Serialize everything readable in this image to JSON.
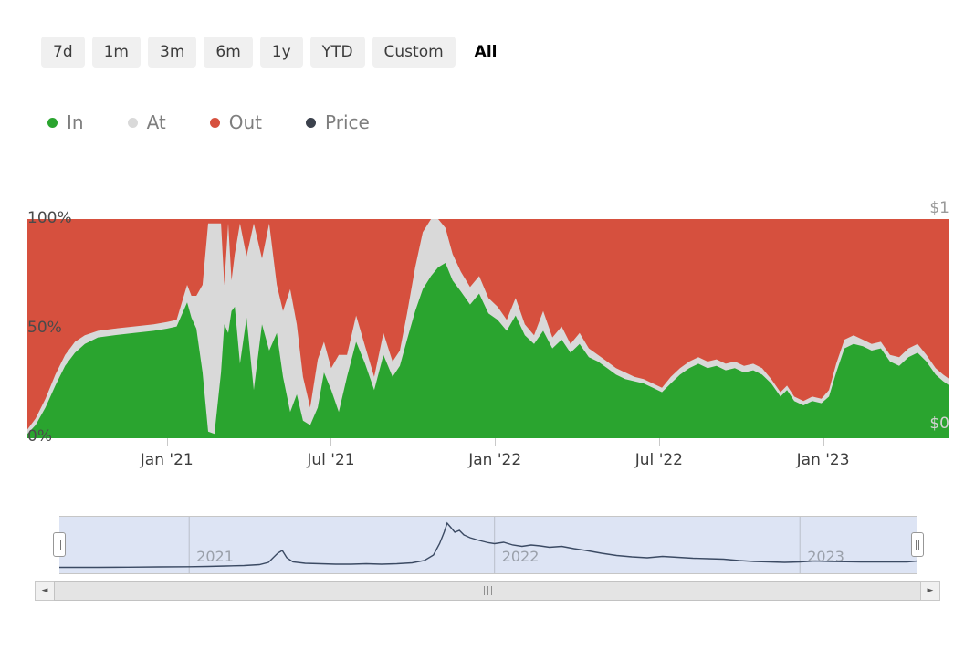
{
  "range_selector": {
    "buttons": [
      {
        "label": "7d",
        "active": false
      },
      {
        "label": "1m",
        "active": false
      },
      {
        "label": "3m",
        "active": false
      },
      {
        "label": "6m",
        "active": false
      },
      {
        "label": "1y",
        "active": false
      },
      {
        "label": "YTD",
        "active": false
      },
      {
        "label": "Custom",
        "active": false
      },
      {
        "label": "All",
        "active": true
      }
    ]
  },
  "legend": {
    "items": [
      {
        "label": "In",
        "color": "#2aa42f"
      },
      {
        "label": "At",
        "color": "#d9d9d9"
      },
      {
        "label": "Out",
        "color": "#d6503e"
      },
      {
        "label": "Price",
        "color": "#3b414c"
      }
    ]
  },
  "icons": {
    "scroll_left": "◄",
    "scroll_right": "►"
  },
  "chart_data": {
    "type": "area",
    "stacking": "percent",
    "x_unit": "decimal_year",
    "x_range": [
      2020.575,
      2023.385
    ],
    "grid": false,
    "y_left_labels": [
      "100%",
      "50%",
      "0%"
    ],
    "y_left_range": [
      0,
      100
    ],
    "y_right_labels": [
      "$1",
      "$0"
    ],
    "y_right_range": [
      0,
      1
    ],
    "x_ticks": [
      {
        "t": 2021.0,
        "label": "Jan '21"
      },
      {
        "t": 2021.5,
        "label": "Jul '21"
      },
      {
        "t": 2022.0,
        "label": "Jan '22"
      },
      {
        "t": 2022.5,
        "label": "Jul '22"
      },
      {
        "t": 2023.0,
        "label": "Jan '23"
      }
    ],
    "navigator_year_ticks": [
      {
        "t": 2021,
        "label": "2021"
      },
      {
        "t": 2022,
        "label": "2022"
      },
      {
        "t": 2023,
        "label": "2023"
      }
    ],
    "series_meta": [
      {
        "name": "In",
        "color": "#2aa42f",
        "type": "area"
      },
      {
        "name": "At",
        "color": "#d9d9d9",
        "type": "area"
      },
      {
        "name": "Out",
        "color": "#d6503e",
        "type": "area"
      },
      {
        "name": "Price",
        "color": "#3b4a63",
        "type": "line"
      }
    ],
    "stacked_points_note": "Each point is [t, In%, At%]; Out% = 100 - In - At",
    "stacked_points": [
      [
        2020.575,
        2,
        2
      ],
      [
        2020.6,
        6,
        3
      ],
      [
        2020.63,
        14,
        4
      ],
      [
        2020.66,
        24,
        5
      ],
      [
        2020.69,
        33,
        5
      ],
      [
        2020.72,
        39,
        5
      ],
      [
        2020.75,
        43,
        4
      ],
      [
        2020.79,
        46,
        3
      ],
      [
        2020.84,
        47,
        3
      ],
      [
        2020.9,
        48,
        3
      ],
      [
        2020.96,
        49,
        3
      ],
      [
        2021.0,
        50,
        3
      ],
      [
        2021.03,
        51,
        3
      ],
      [
        2021.062,
        62,
        8
      ],
      [
        2021.075,
        55,
        10
      ],
      [
        2021.09,
        50,
        15
      ],
      [
        2021.109,
        30,
        40
      ],
      [
        2021.126,
        3,
        95
      ],
      [
        2021.145,
        2,
        96
      ],
      [
        2021.165,
        30,
        68
      ],
      [
        2021.175,
        52,
        18
      ],
      [
        2021.187,
        48,
        50
      ],
      [
        2021.197,
        58,
        14
      ],
      [
        2021.207,
        60,
        24
      ],
      [
        2021.223,
        34,
        64
      ],
      [
        2021.243,
        55,
        28
      ],
      [
        2021.265,
        22,
        76
      ],
      [
        2021.29,
        52,
        30
      ],
      [
        2021.312,
        40,
        58
      ],
      [
        2021.335,
        48,
        22
      ],
      [
        2021.354,
        28,
        30
      ],
      [
        2021.376,
        12,
        56
      ],
      [
        2021.396,
        20,
        32
      ],
      [
        2021.415,
        8,
        20
      ],
      [
        2021.437,
        6,
        8
      ],
      [
        2021.46,
        14,
        22
      ],
      [
        2021.479,
        30,
        14
      ],
      [
        2021.501,
        22,
        10
      ],
      [
        2021.524,
        12,
        26
      ],
      [
        2021.549,
        28,
        10
      ],
      [
        2021.577,
        44,
        12
      ],
      [
        2021.604,
        34,
        8
      ],
      [
        2021.632,
        22,
        6
      ],
      [
        2021.66,
        38,
        10
      ],
      [
        2021.688,
        28,
        7
      ],
      [
        2021.71,
        33,
        7
      ],
      [
        2021.732,
        45,
        12
      ],
      [
        2021.757,
        58,
        20
      ],
      [
        2021.78,
        68,
        26
      ],
      [
        2021.805,
        74,
        26
      ],
      [
        2021.827,
        78,
        22
      ],
      [
        2021.849,
        80,
        16
      ],
      [
        2021.871,
        72,
        12
      ],
      [
        2021.896,
        67,
        9
      ],
      [
        2021.924,
        61,
        8
      ],
      [
        2021.952,
        66,
        8
      ],
      [
        2021.98,
        57,
        7
      ],
      [
        2022.008,
        54,
        6
      ],
      [
        2022.036,
        49,
        5
      ],
      [
        2022.063,
        56,
        8
      ],
      [
        2022.091,
        47,
        5
      ],
      [
        2022.119,
        43,
        4
      ],
      [
        2022.147,
        49,
        9
      ],
      [
        2022.175,
        41,
        5
      ],
      [
        2022.203,
        45,
        6
      ],
      [
        2022.23,
        39,
        4
      ],
      [
        2022.258,
        43,
        5
      ],
      [
        2022.286,
        37,
        4
      ],
      [
        2022.314,
        35,
        3
      ],
      [
        2022.342,
        32,
        3
      ],
      [
        2022.369,
        29,
        3
      ],
      [
        2022.397,
        27,
        3
      ],
      [
        2022.425,
        26,
        2
      ],
      [
        2022.453,
        25,
        2
      ],
      [
        2022.481,
        23,
        2
      ],
      [
        2022.509,
        21,
        2
      ],
      [
        2022.536,
        25,
        3
      ],
      [
        2022.564,
        29,
        3
      ],
      [
        2022.592,
        32,
        3
      ],
      [
        2022.62,
        34,
        3
      ],
      [
        2022.648,
        32,
        3
      ],
      [
        2022.675,
        33,
        3
      ],
      [
        2022.703,
        31,
        3
      ],
      [
        2022.731,
        32,
        3
      ],
      [
        2022.759,
        30,
        3
      ],
      [
        2022.787,
        31,
        3
      ],
      [
        2022.814,
        29,
        3
      ],
      [
        2022.842,
        25,
        2
      ],
      [
        2022.87,
        19,
        2
      ],
      [
        2022.89,
        22,
        2
      ],
      [
        2022.912,
        17,
        2
      ],
      [
        2022.94,
        15,
        2
      ],
      [
        2022.967,
        17,
        2
      ],
      [
        2022.995,
        16,
        2
      ],
      [
        2023.018,
        19,
        3
      ],
      [
        2023.04,
        30,
        4
      ],
      [
        2023.065,
        41,
        4
      ],
      [
        2023.093,
        43,
        4
      ],
      [
        2023.121,
        42,
        3
      ],
      [
        2023.148,
        40,
        3
      ],
      [
        2023.176,
        41,
        3
      ],
      [
        2023.204,
        35,
        3
      ],
      [
        2023.232,
        33,
        4
      ],
      [
        2023.26,
        37,
        4
      ],
      [
        2023.288,
        39,
        4
      ],
      [
        2023.315,
        35,
        3
      ],
      [
        2023.343,
        29,
        3
      ],
      [
        2023.366,
        26,
        3
      ],
      [
        2023.385,
        24,
        3
      ]
    ],
    "price_points_note": "Each point is [t, price_usd] on $0-$1 axis; shown in navigator",
    "price_points": [
      [
        2020.575,
        0.03
      ],
      [
        2020.7,
        0.03
      ],
      [
        2020.8,
        0.035
      ],
      [
        2020.9,
        0.04
      ],
      [
        2021.0,
        0.045
      ],
      [
        2021.06,
        0.05
      ],
      [
        2021.12,
        0.06
      ],
      [
        2021.18,
        0.07
      ],
      [
        2021.23,
        0.09
      ],
      [
        2021.26,
        0.14
      ],
      [
        2021.29,
        0.34
      ],
      [
        2021.305,
        0.4
      ],
      [
        2021.32,
        0.24
      ],
      [
        2021.34,
        0.15
      ],
      [
        2021.38,
        0.12
      ],
      [
        2021.43,
        0.11
      ],
      [
        2021.48,
        0.1
      ],
      [
        2021.53,
        0.1
      ],
      [
        2021.58,
        0.11
      ],
      [
        2021.63,
        0.1
      ],
      [
        2021.68,
        0.11
      ],
      [
        2021.73,
        0.13
      ],
      [
        2021.77,
        0.18
      ],
      [
        2021.8,
        0.3
      ],
      [
        2021.82,
        0.55
      ],
      [
        2021.835,
        0.8
      ],
      [
        2021.845,
        1.0
      ],
      [
        2021.855,
        0.92
      ],
      [
        2021.87,
        0.8
      ],
      [
        2021.885,
        0.84
      ],
      [
        2021.9,
        0.74
      ],
      [
        2021.92,
        0.68
      ],
      [
        2021.95,
        0.62
      ],
      [
        2021.98,
        0.57
      ],
      [
        2022.0,
        0.55
      ],
      [
        2022.03,
        0.58
      ],
      [
        2022.06,
        0.52
      ],
      [
        2022.09,
        0.49
      ],
      [
        2022.12,
        0.52
      ],
      [
        2022.15,
        0.5
      ],
      [
        2022.18,
        0.47
      ],
      [
        2022.22,
        0.49
      ],
      [
        2022.26,
        0.44
      ],
      [
        2022.3,
        0.4
      ],
      [
        2022.35,
        0.34
      ],
      [
        2022.4,
        0.29
      ],
      [
        2022.45,
        0.26
      ],
      [
        2022.5,
        0.24
      ],
      [
        2022.55,
        0.27
      ],
      [
        2022.6,
        0.25
      ],
      [
        2022.65,
        0.23
      ],
      [
        2022.7,
        0.22
      ],
      [
        2022.75,
        0.21
      ],
      [
        2022.8,
        0.18
      ],
      [
        2022.85,
        0.16
      ],
      [
        2022.9,
        0.15
      ],
      [
        2022.95,
        0.14
      ],
      [
        2023.0,
        0.15
      ],
      [
        2023.05,
        0.17
      ],
      [
        2023.1,
        0.16
      ],
      [
        2023.15,
        0.155
      ],
      [
        2023.2,
        0.15
      ],
      [
        2023.25,
        0.15
      ],
      [
        2023.3,
        0.148
      ],
      [
        2023.35,
        0.15
      ],
      [
        2023.385,
        0.17
      ]
    ],
    "navigator_colors": {
      "mask": "#dde4f4",
      "line": "#3b4a63",
      "gridline": "#b9bfca"
    }
  }
}
